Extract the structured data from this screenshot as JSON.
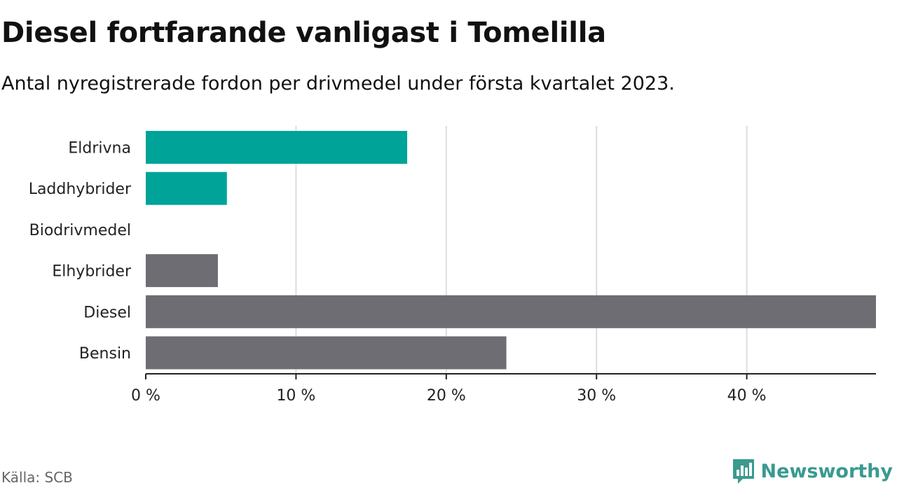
{
  "title": "Diesel fortfarande vanligast i Tomelilla",
  "subtitle": "Antal nyregistrerade fordon per drivmedel under första kvartalet 2023.",
  "source": "Källa: SCB",
  "brand": {
    "name": "Newsworthy",
    "icon": "newsworthy-logo-icon",
    "color": "#3a9a8f"
  },
  "colors": {
    "highlight": "#00a398",
    "default": "#6e6d73",
    "grid": "#dddddd",
    "axis": "#222222"
  },
  "chart_data": {
    "type": "bar",
    "orientation": "horizontal",
    "title": "Diesel fortfarande vanligast i Tomelilla",
    "subtitle": "Antal nyregistrerade fordon per drivmedel under första kvartalet 2023.",
    "categories": [
      "Eldrivna",
      "Laddhybrider",
      "Biodrivmedel",
      "Elhybrider",
      "Diesel",
      "Bensin"
    ],
    "values": [
      17.4,
      5.4,
      0,
      4.8,
      48.6,
      24.0
    ],
    "highlight": [
      true,
      true,
      false,
      false,
      false,
      false
    ],
    "xlim": [
      0,
      48.6
    ],
    "xticks": [
      0,
      10,
      20,
      30,
      40
    ],
    "xtick_labels": [
      "0 %",
      "10 %",
      "20 %",
      "30 %",
      "40 %"
    ],
    "grid": true,
    "xlabel": "",
    "ylabel": ""
  }
}
